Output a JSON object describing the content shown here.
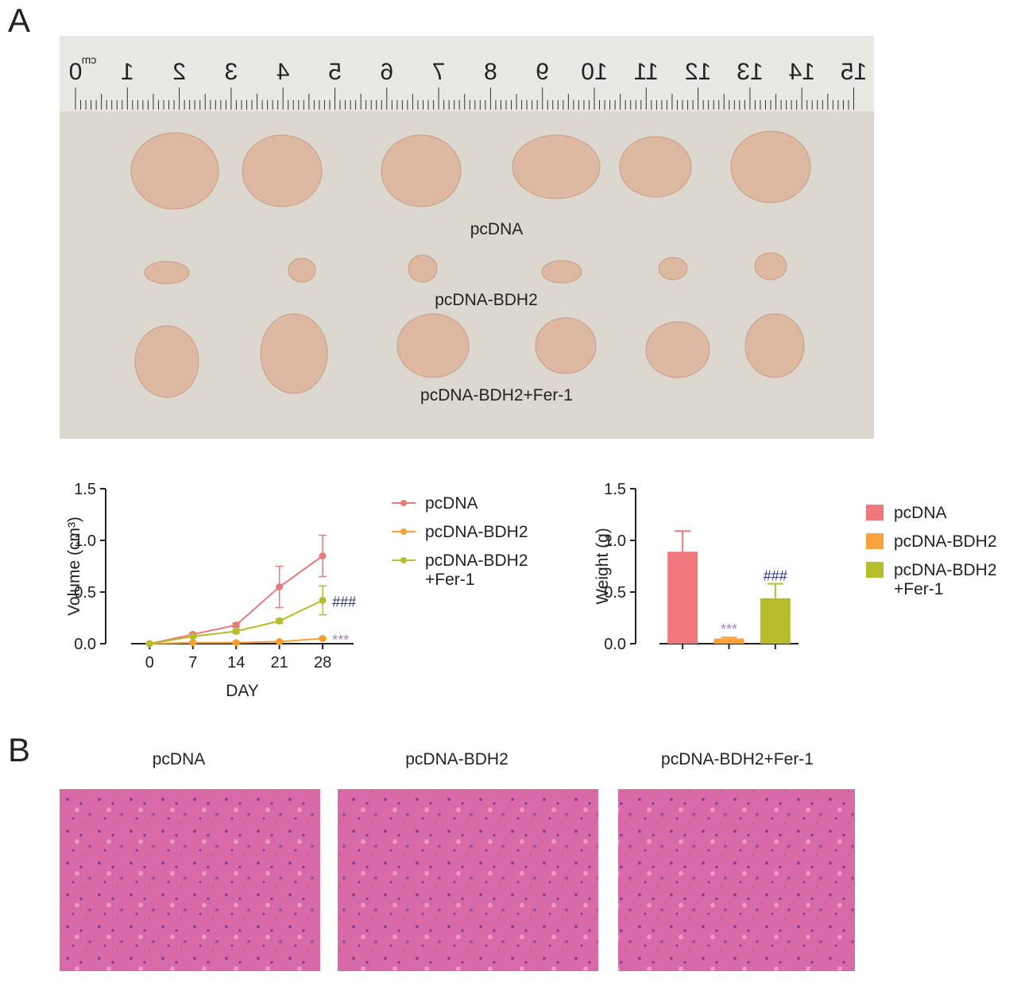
{
  "panel_labels": [
    "A",
    "B"
  ],
  "ruler": {
    "unit": "cm",
    "labels": [
      "0",
      "1",
      "2",
      "3",
      "4",
      "5",
      "6",
      "7",
      "8",
      "9",
      "10",
      "11",
      "12",
      "13",
      "14",
      "15"
    ]
  },
  "photo_labels": [
    "pcDNA",
    "pcDNA-BDH2",
    "pcDNA-BDH2+Fer-1"
  ],
  "chart_data": [
    {
      "type": "line",
      "x_label": "DAY",
      "y_label": "Volume (cm³)",
      "x": [
        0,
        7,
        14,
        21,
        28
      ],
      "xlim": [
        -3,
        33
      ],
      "xticks": [
        0,
        7,
        14,
        21,
        28
      ],
      "ylim": [
        0,
        1.5
      ],
      "yticks": [
        {
          "value": 0,
          "label": "0.0"
        },
        {
          "value": 0.5,
          "label": "0.5"
        },
        {
          "value": 1,
          "label": "1.0"
        },
        {
          "value": 1.5,
          "label": "1.5"
        }
      ],
      "series": [
        {
          "name": "pcDNA",
          "color": "#e87a7c",
          "values": [
            0,
            0.09,
            0.18,
            0.55,
            0.85
          ],
          "errors": [
            0,
            0.01,
            0.02,
            0.2,
            0.2
          ]
        },
        {
          "name": "pcDNA-BDH2",
          "color": "#f5a030",
          "values": [
            0,
            0.01,
            0.01,
            0.02,
            0.05
          ],
          "errors": [
            0,
            0.005,
            0.005,
            0.005,
            0.01
          ],
          "annotation": "***",
          "annotation_color": "#a77dc4"
        },
        {
          "name": "pcDNA-BDH2\n+Fer-1",
          "color": "#b5bd2a",
          "values": [
            0,
            0.07,
            0.12,
            0.22,
            0.42
          ],
          "errors": [
            0,
            0.01,
            0.02,
            0.02,
            0.14
          ],
          "annotation": "###",
          "annotation_color": "#2a3580"
        }
      ]
    },
    {
      "type": "bar",
      "y_label": "Weight (g)",
      "categories": [
        null
      ],
      "ylim": [
        0,
        1.5
      ],
      "yticks": [
        {
          "value": 0,
          "label": "0.0"
        },
        {
          "value": 0.5,
          "label": "0.5"
        },
        {
          "value": 1,
          "label": "1.0"
        },
        {
          "value": 1.5,
          "label": "1.5"
        }
      ],
      "series": [
        {
          "name": "pcDNA",
          "color": "#f0787c",
          "values": [
            0.89
          ],
          "errors": [
            0.2
          ]
        },
        {
          "name": "pcDNA-BDH2",
          "color": "#f7a23a",
          "values": [
            0.05
          ],
          "errors": [
            0.01
          ],
          "annotation": "***",
          "annotation_color": "#a77dc4"
        },
        {
          "name": "pcDNA-BDH2\n+Fer-1",
          "color": "#b5bd2a",
          "values": [
            0.44
          ],
          "errors": [
            0.14
          ],
          "annotation": "###",
          "annotation_color": "#2a3580"
        }
      ]
    }
  ],
  "histology_labels": [
    "pcDNA",
    "pcDNA-BDH2",
    "pcDNA-BDH2+Fer-1"
  ]
}
